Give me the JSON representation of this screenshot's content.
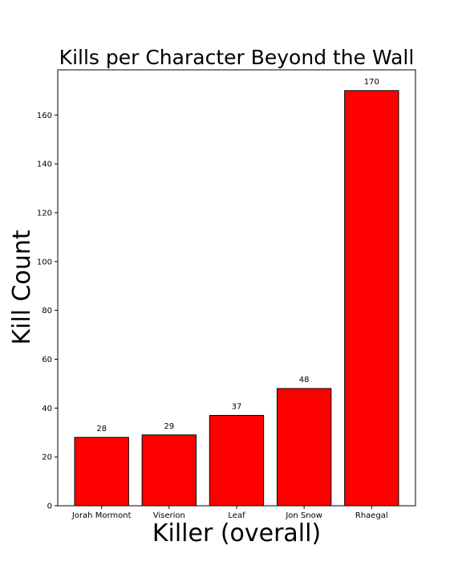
{
  "chart_data": {
    "type": "bar",
    "title": "Kills per Character Beyond the Wall",
    "xlabel": "Killer (overall)",
    "ylabel": "Kill Count",
    "categories": [
      "Jorah Mormont",
      "Viserion",
      "Leaf",
      "Jon Snow",
      "Rhaegal"
    ],
    "values": [
      28,
      29,
      37,
      48,
      170
    ],
    "data_labels": [
      "28",
      "29",
      "37",
      "48",
      "170"
    ],
    "yticks": [
      0,
      20,
      40,
      60,
      80,
      100,
      120,
      140,
      160
    ],
    "ylim": [
      0,
      178.5
    ],
    "grid": false,
    "legend": "none",
    "bar_color": "#ff0000",
    "bar_edge_color": "#000000"
  }
}
